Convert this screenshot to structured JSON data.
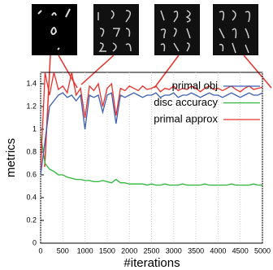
{
  "chart_data": {
    "type": "line",
    "x_label": "#iterations",
    "y_label": "metrics",
    "x": [
      0,
      100,
      200,
      300,
      400,
      500,
      600,
      700,
      800,
      900,
      1000,
      1100,
      1200,
      1300,
      1400,
      1500,
      1600,
      1700,
      1800,
      1900,
      2000,
      2100,
      2200,
      2300,
      2400,
      2500,
      2600,
      2700,
      2800,
      2900,
      3000,
      3100,
      3200,
      3300,
      3400,
      3500,
      3600,
      3700,
      3800,
      3900,
      4000,
      4100,
      4200,
      4300,
      4400,
      4500,
      4600,
      4700,
      4800,
      4900,
      5000
    ],
    "series": [
      {
        "name": "primal obj",
        "color": "#3b5fb5",
        "values": [
          0.6,
          0.9,
          1.2,
          1.25,
          1.3,
          1.32,
          1.28,
          1.3,
          1.25,
          1.3,
          1.0,
          1.3,
          1.28,
          1.3,
          1.15,
          1.3,
          1.32,
          1.05,
          1.3,
          1.28,
          1.3,
          1.32,
          1.3,
          1.28,
          1.3,
          1.3,
          1.32,
          1.28,
          1.3,
          1.3,
          1.32,
          1.28,
          1.3,
          1.3,
          1.32,
          1.3,
          1.28,
          1.3,
          1.32,
          1.3,
          1.3,
          1.28,
          1.3,
          1.32,
          1.3,
          1.28,
          1.3,
          1.32,
          1.3,
          1.3,
          1.32
        ]
      },
      {
        "name": "disc accuracy",
        "color": "#2db63a",
        "values": [
          0.95,
          0.7,
          0.65,
          0.63,
          0.6,
          0.6,
          0.58,
          0.57,
          0.56,
          0.56,
          0.55,
          0.55,
          0.54,
          0.54,
          0.55,
          0.54,
          0.53,
          0.56,
          0.53,
          0.53,
          0.52,
          0.52,
          0.52,
          0.52,
          0.51,
          0.52,
          0.51,
          0.51,
          0.52,
          0.51,
          0.51,
          0.51,
          0.52,
          0.51,
          0.51,
          0.51,
          0.51,
          0.52,
          0.51,
          0.51,
          0.51,
          0.51,
          0.51,
          0.52,
          0.51,
          0.51,
          0.51,
          0.51,
          0.52,
          0.51,
          0.51
        ]
      },
      {
        "name": "primal approx",
        "color": "#e8312a",
        "values": [
          0.65,
          1.5,
          1.3,
          1.5,
          1.35,
          1.38,
          1.32,
          1.5,
          1.3,
          1.36,
          1.1,
          1.38,
          1.34,
          1.4,
          1.2,
          1.36,
          1.4,
          1.12,
          1.36,
          1.34,
          1.38,
          1.36,
          1.34,
          1.38,
          1.35,
          1.36,
          1.38,
          1.33,
          1.36,
          1.35,
          1.38,
          1.34,
          1.36,
          1.35,
          1.38,
          1.36,
          1.33,
          1.36,
          1.38,
          1.35,
          1.36,
          1.34,
          1.36,
          1.38,
          1.35,
          1.33,
          1.36,
          1.38,
          1.35,
          1.36,
          1.37
        ]
      }
    ],
    "xlim": [
      0,
      5000
    ],
    "xticks": [
      0,
      500,
      1000,
      1500,
      2000,
      2500,
      3000,
      3500,
      4000,
      4500,
      5000
    ],
    "ylim": [
      0,
      1.5
    ],
    "yticks": [
      0,
      0.2,
      0.4,
      0.6,
      0.8,
      1,
      1.2,
      1.4
    ],
    "grid": true
  }
}
